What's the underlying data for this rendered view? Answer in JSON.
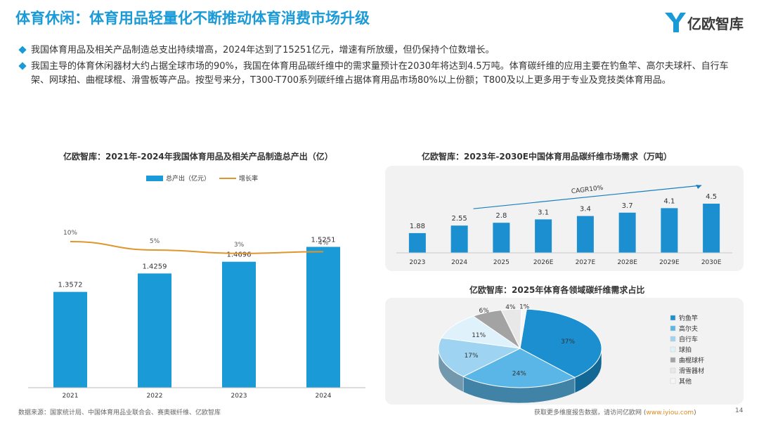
{
  "header": {
    "title": "体育休闲：体育用品轻量化不断推动体育消费市场升级",
    "logo_text": "亿欧智库"
  },
  "bullets": [
    "我国体育用品及相关产品制造总支出持续增高，2024年达到了15251亿元，增速有所放缓，但仍保持个位数增长。",
    "我国主导的体育休闲器材大约占据全球市场的90%，我国在体育用品碳纤维中的需求量预计在2030年将达到4.5万吨。体育碳纤维的应用主要在钓鱼竿、高尔夫球杆、自行车架、网球拍、曲棍球棍、滑雪板等产品。按型号来分，T300-T700系列碳纤维占据体育用品市场80%以上份额；T800及以上更多用于专业及竞技类体育用品。"
  ],
  "colors": {
    "accent": "#1a9ad6",
    "line": "#e0952e",
    "bar2": "#1b8fcf"
  },
  "chart_data": [
    {
      "type": "bar",
      "title": "亿欧智库：2021年-2024年我国体育用品及相关产品制造总产出（亿）",
      "categories": [
        "2021",
        "2022",
        "2023",
        "2024"
      ],
      "series": [
        {
          "name": "总产出（亿元）",
          "values": [
            1.3572,
            1.4259,
            1.4696,
            1.5251
          ],
          "labels": [
            "1.3572",
            "1.4259",
            "1.4696",
            "1.5251"
          ]
        },
        {
          "name": "增长率",
          "type": "line",
          "values": [
            10,
            5,
            3,
            4
          ],
          "labels": [
            "10%",
            "5%",
            "3%",
            "4%"
          ]
        }
      ],
      "legend_position": "top"
    },
    {
      "type": "bar",
      "title": "亿欧智库：2023年-2030E中国体育用品碳纤维市场需求（万吨）",
      "categories": [
        "2023",
        "2024",
        "2025",
        "2026E",
        "2027E",
        "2028E",
        "2029E",
        "2030E"
      ],
      "values": [
        1.88,
        2.55,
        2.8,
        3.1,
        3.4,
        3.7,
        4.1,
        4.5
      ],
      "labels": [
        "1.88",
        "2.55",
        "2.8",
        "3.1",
        "3.4",
        "3.7",
        "4.1",
        "4.5"
      ],
      "annotation": "CAGR10%"
    },
    {
      "type": "pie",
      "title": "亿欧智库：2025年体育各领域碳纤维需求占比",
      "categories": [
        "钓鱼竿",
        "高尔夫",
        "自行车",
        "球拍",
        "曲棍球杆",
        "滑雪器材",
        "其他"
      ],
      "values": [
        37,
        24,
        17,
        11,
        6,
        4,
        1
      ],
      "labels": [
        "37%",
        "24%",
        "17%",
        "11%",
        "6%",
        "4%",
        "1%"
      ],
      "colors": [
        "#1b8fcf",
        "#5ab6e6",
        "#9ed3f2",
        "#dff1fb",
        "#a3a3a3",
        "#e8e8e8",
        "#f6f6f6"
      ],
      "legend_position": "right"
    }
  ],
  "footer": {
    "source": "数据来源：国家统计局、中国体育用品业联合会、赛奥碳纤维、亿欧智库",
    "cta_prefix": "获取更多维度报告数据，请访问亿欧网 (",
    "cta_link": "www.iyiou.com",
    "cta_suffix": ")",
    "page": "14"
  }
}
